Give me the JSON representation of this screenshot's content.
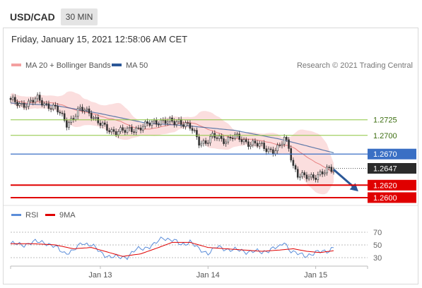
{
  "header": {
    "symbol": "USD/CAD",
    "timeframe": "30 MIN"
  },
  "datetime": "Friday, January 15, 2021 12:58:06 AM CET",
  "credit": "Research © 2021 Trading Central",
  "colors": {
    "bollinger": "#f4a0a0",
    "ma50": "#2b5797",
    "support": "#e00000",
    "resistance_green": "#8cc63f",
    "pivot": "#3a6fc4",
    "rsi": "#5b8dd9",
    "rsi_ma": "#e00000",
    "arrow": "#2b5797"
  },
  "chart_data": [
    {
      "type": "candlestick",
      "title": "",
      "legend": [
        "MA 20 + Bollinger Bands",
        "MA 50"
      ],
      "legend_placement": "top-left",
      "ylim": [
        1.2592,
        1.2795
      ],
      "x_ticks": [
        {
          "label": "Jan 13",
          "index": 40
        },
        {
          "label": "Jan 14",
          "index": 88
        },
        {
          "label": "Jan 15",
          "index": 136
        }
      ],
      "levels": [
        {
          "label": "1.2725",
          "value": 1.2725,
          "kind": "resistance"
        },
        {
          "label": "1.2700",
          "value": 1.27,
          "kind": "resistance"
        },
        {
          "label": "1.2670",
          "value": 1.267,
          "kind": "pivot"
        },
        {
          "label": "1.2647",
          "value": 1.2647,
          "kind": "last"
        },
        {
          "label": "1.2620",
          "value": 1.262,
          "kind": "support"
        },
        {
          "label": "1.2600",
          "value": 1.26,
          "kind": "support"
        }
      ],
      "close_anchors": [
        [
          0,
          1.2755
        ],
        [
          4,
          1.275
        ],
        [
          8,
          1.2752
        ],
        [
          12,
          1.2758
        ],
        [
          16,
          1.275
        ],
        [
          20,
          1.2742
        ],
        [
          22,
          1.2735
        ],
        [
          25,
          1.272
        ],
        [
          28,
          1.2728
        ],
        [
          30,
          1.2738
        ],
        [
          33,
          1.2742
        ],
        [
          36,
          1.2735
        ],
        [
          39,
          1.272
        ],
        [
          42,
          1.2712
        ],
        [
          45,
          1.2708
        ],
        [
          48,
          1.2707
        ],
        [
          51,
          1.2706
        ],
        [
          54,
          1.271
        ],
        [
          57,
          1.2712
        ],
        [
          60,
          1.2715
        ],
        [
          63,
          1.272
        ],
        [
          66,
          1.2724
        ],
        [
          69,
          1.2722
        ],
        [
          72,
          1.272
        ],
        [
          75,
          1.2724
        ],
        [
          78,
          1.2718
        ],
        [
          80,
          1.2712
        ],
        [
          82,
          1.2702
        ],
        [
          84,
          1.269
        ],
        [
          87,
          1.269
        ],
        [
          90,
          1.2697
        ],
        [
          93,
          1.2695
        ],
        [
          96,
          1.2693
        ],
        [
          99,
          1.2698
        ],
        [
          102,
          1.2694
        ],
        [
          105,
          1.269
        ],
        [
          108,
          1.2687
        ],
        [
          111,
          1.2683
        ],
        [
          114,
          1.2679
        ],
        [
          117,
          1.2676
        ],
        [
          120,
          1.268
        ],
        [
          122,
          1.2695
        ],
        [
          124,
          1.2682
        ],
        [
          126,
          1.2652
        ],
        [
          128,
          1.2636
        ],
        [
          131,
          1.2632
        ],
        [
          134,
          1.2634
        ],
        [
          137,
          1.2637
        ],
        [
          140,
          1.264
        ],
        [
          142,
          1.2645
        ],
        [
          144,
          1.2647
        ]
      ],
      "ma50_anchors": [
        [
          0,
          1.2752
        ],
        [
          20,
          1.2748
        ],
        [
          40,
          1.2735
        ],
        [
          60,
          1.272
        ],
        [
          80,
          1.2715
        ],
        [
          100,
          1.2708
        ],
        [
          120,
          1.2694
        ],
        [
          130,
          1.2685
        ],
        [
          144,
          1.2672
        ]
      ],
      "forecast_arrow": {
        "from": [
          144,
          1.2645
        ],
        "to": [
          155,
          1.261
        ]
      }
    },
    {
      "type": "line",
      "title": "",
      "legend": [
        "RSI",
        "9MA"
      ],
      "legend_placement": "top-left",
      "ylim": [
        20,
        80
      ],
      "y_ticks": [
        70,
        50,
        30
      ],
      "rsi_anchors": [
        [
          0,
          52
        ],
        [
          5,
          50
        ],
        [
          10,
          54
        ],
        [
          15,
          55
        ],
        [
          20,
          46
        ],
        [
          24,
          38
        ],
        [
          28,
          40
        ],
        [
          32,
          54
        ],
        [
          36,
          50
        ],
        [
          40,
          38
        ],
        [
          44,
          32
        ],
        [
          48,
          30
        ],
        [
          52,
          32
        ],
        [
          56,
          42
        ],
        [
          60,
          46
        ],
        [
          64,
          50
        ],
        [
          68,
          62
        ],
        [
          72,
          58
        ],
        [
          76,
          50
        ],
        [
          80,
          56
        ],
        [
          84,
          42
        ],
        [
          88,
          38
        ],
        [
          92,
          46
        ],
        [
          96,
          44
        ],
        [
          100,
          42
        ],
        [
          104,
          40
        ],
        [
          108,
          40
        ],
        [
          112,
          38
        ],
        [
          116,
          44
        ],
        [
          120,
          46
        ],
        [
          122,
          56
        ],
        [
          124,
          44
        ],
        [
          127,
          36
        ],
        [
          131,
          34
        ],
        [
          135,
          36
        ],
        [
          139,
          40
        ],
        [
          142,
          42
        ],
        [
          144,
          46
        ]
      ],
      "ma_anchors": [
        [
          0,
          52
        ],
        [
          10,
          52
        ],
        [
          20,
          50
        ],
        [
          28,
          44
        ],
        [
          36,
          46
        ],
        [
          44,
          38
        ],
        [
          50,
          32
        ],
        [
          58,
          36
        ],
        [
          66,
          46
        ],
        [
          72,
          54
        ],
        [
          80,
          54
        ],
        [
          88,
          46
        ],
        [
          96,
          44
        ],
        [
          104,
          42
        ],
        [
          112,
          40
        ],
        [
          120,
          42
        ],
        [
          126,
          44
        ],
        [
          132,
          40
        ],
        [
          138,
          38
        ],
        [
          144,
          41
        ]
      ]
    }
  ]
}
